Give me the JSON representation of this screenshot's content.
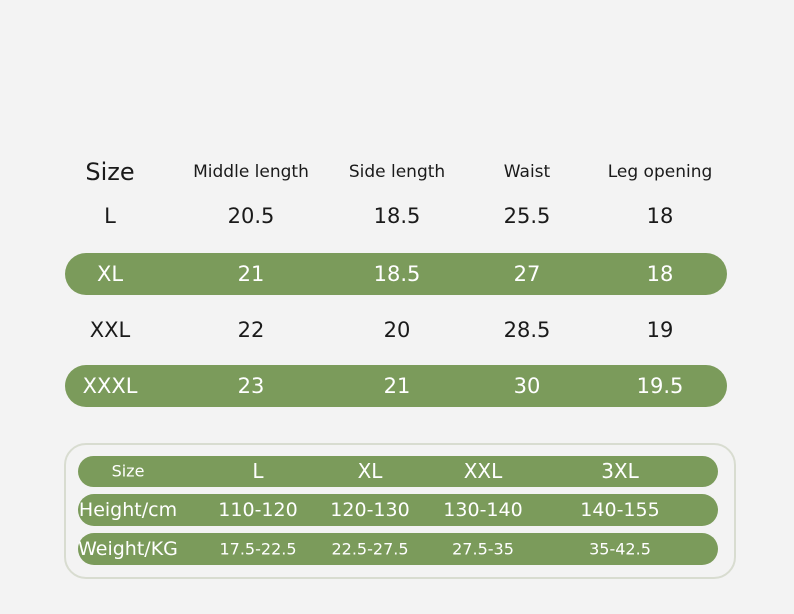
{
  "size_table": {
    "header": [
      "Size",
      "Middle length",
      "Side length",
      "Waist",
      "Leg opening"
    ],
    "rows": [
      [
        "L",
        "20.5",
        "18.5",
        "25.5",
        "18"
      ],
      [
        "XL",
        "21",
        "18.5",
        "27",
        "18"
      ],
      [
        "XXL",
        "22",
        "20",
        "28.5",
        "19"
      ],
      [
        "XXXL",
        "23",
        "21",
        "30",
        "19.5"
      ]
    ]
  },
  "fit_table": {
    "rows": [
      [
        "Size",
        "L",
        "XL",
        "XXL",
        "3XL"
      ],
      [
        "Height/cm",
        "110-120",
        "120-130",
        "130-140",
        "140-155"
      ],
      [
        "Weight/KG",
        "17.5-22.5",
        "22.5-27.5",
        "27.5-35",
        "35-42.5"
      ]
    ]
  }
}
